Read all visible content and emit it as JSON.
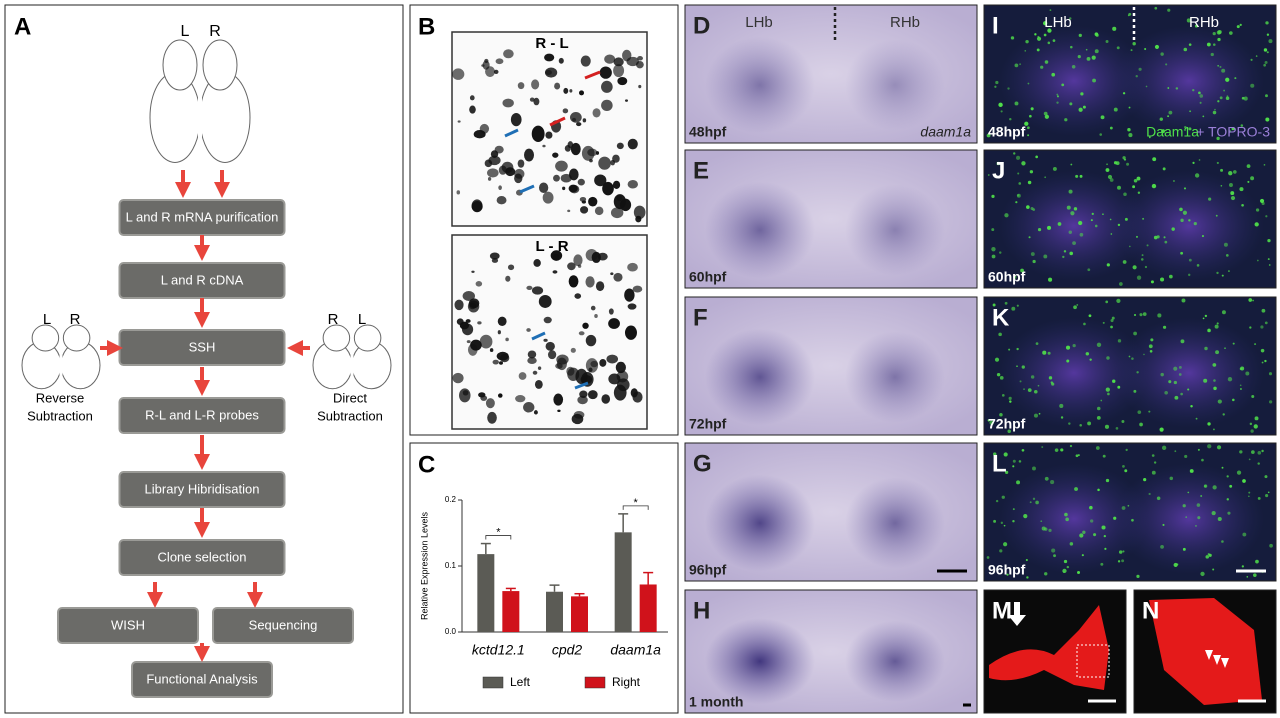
{
  "panels": {
    "A": {
      "label": "A",
      "brain_top": [
        "L",
        "R"
      ],
      "steps": [
        "L and R mRNA purification",
        "L and R cDNA",
        "SSH",
        "R-L and L-R probes",
        "Library Hibridisation",
        "Clone selection",
        "WISH",
        "Sequencing",
        "Functional Analysis"
      ],
      "reverse": {
        "sides": [
          "L",
          "R"
        ],
        "caption": [
          "Reverse",
          "Subtraction"
        ]
      },
      "direct": {
        "sides": [
          "R",
          "L"
        ],
        "caption": [
          "Direct",
          "Subtraction"
        ]
      }
    },
    "B": {
      "label": "B",
      "top": "R - L",
      "bottom": "L - R"
    },
    "C": {
      "label": "C"
    },
    "micrographs": [
      {
        "label": "D",
        "stage": "48hpf",
        "left": "LHb",
        "right": "RHb",
        "gene": "daam1a"
      },
      {
        "label": "E",
        "stage": "60hpf"
      },
      {
        "label": "F",
        "stage": "72hpf"
      },
      {
        "label": "G",
        "stage": "96hpf"
      },
      {
        "label": "H",
        "stage": "1 month"
      },
      {
        "label": "I",
        "stage": "48hpf",
        "left": "LHb",
        "right": "RHb",
        "stain": "Daam1a",
        "counterstain": "+ TOPRO-3"
      },
      {
        "label": "J",
        "stage": "60hpf"
      },
      {
        "label": "K",
        "stage": "72hpf"
      },
      {
        "label": "L",
        "stage": "96hpf"
      },
      {
        "label": "M"
      },
      {
        "label": "N"
      }
    ]
  },
  "chart_data": {
    "type": "bar",
    "ylabel": "Relative Expression Levels",
    "categories": [
      "kctd12.1",
      "cpd2",
      "daam1a"
    ],
    "series": [
      {
        "name": "Left",
        "color": "#5b5b55",
        "values": [
          0.118,
          0.061,
          0.151
        ],
        "errors": [
          0.016,
          0.01,
          0.028
        ]
      },
      {
        "name": "Right",
        "color": "#d0121b",
        "values": [
          0.062,
          0.054,
          0.072
        ],
        "errors": [
          0.004,
          0.004,
          0.018
        ]
      }
    ],
    "significance": [
      "*",
      null,
      "*"
    ],
    "ylim": [
      0,
      0.2
    ],
    "yticks": [
      {
        "value": 0,
        "label": "0.0"
      },
      0.1,
      0.2
    ]
  }
}
